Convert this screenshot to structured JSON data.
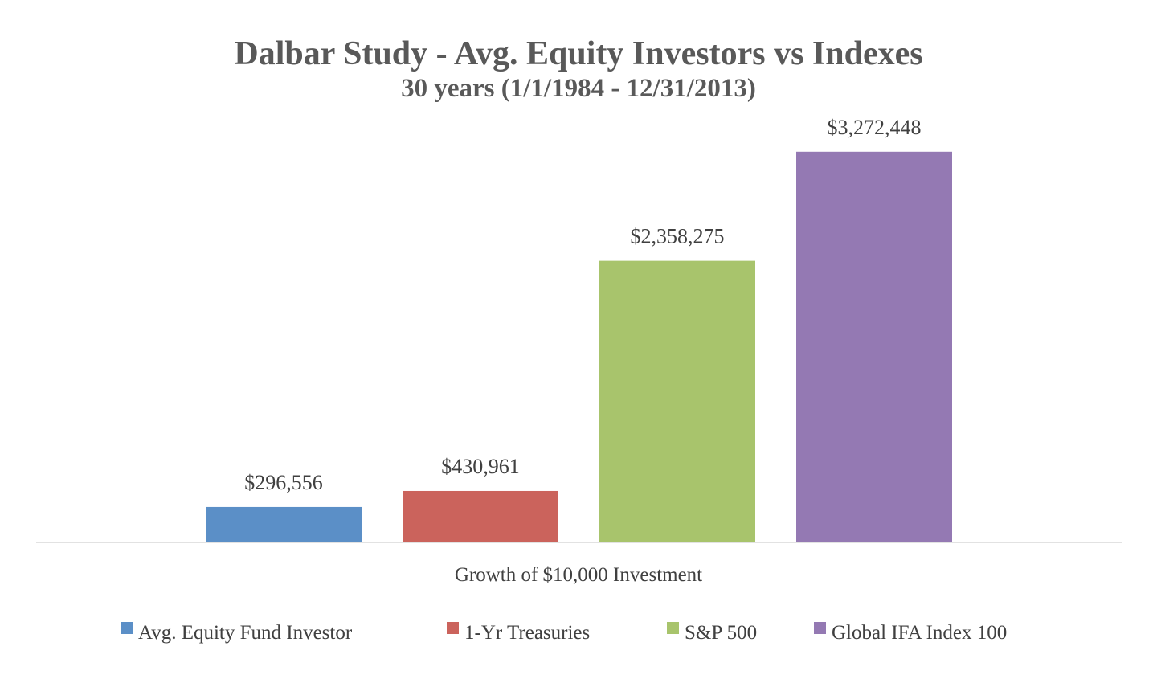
{
  "chart_data": {
    "type": "bar",
    "title": "Dalbar Study - Avg. Equity Investors vs Indexes",
    "subtitle": "30 years (1/1/1984 - 12/31/2013)",
    "xlabel": "Growth of $10,000 Investment",
    "ylabel": "",
    "ylim": [
      0,
      3500000
    ],
    "grid": false,
    "legend_position": "bottom",
    "series": [
      {
        "name": "Avg. Equity Fund Investor",
        "value": 296556,
        "label": "$296,556",
        "color": "#5b8fc7"
      },
      {
        "name": "1-Yr Treasuries",
        "value": 430961,
        "label": "$430,961",
        "color": "#cb635c"
      },
      {
        "name": "S&P 500",
        "value": 2358275,
        "label": "$2,358,275",
        "color": "#a8c46c"
      },
      {
        "name": "Global IFA Index 100",
        "value": 3272448,
        "label": "$3,272,448",
        "color": "#9479b3"
      }
    ],
    "colors": {
      "title": "#595959",
      "labels": "#404040",
      "axis": "#d9d9d9"
    }
  }
}
